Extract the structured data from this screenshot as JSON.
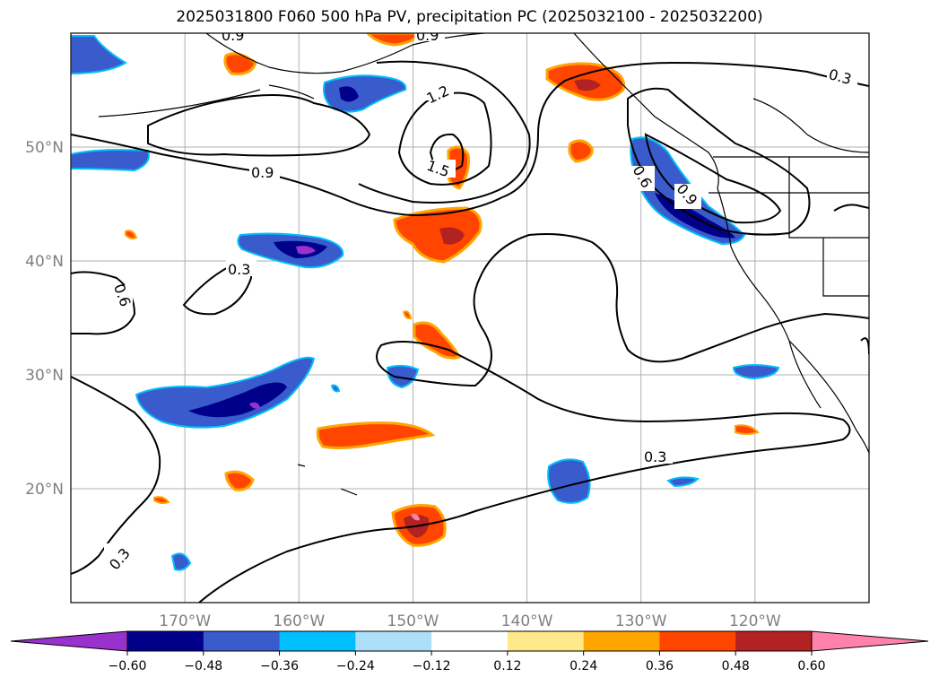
{
  "title": "2025031800 F060 500 hPa PV, precipitation PC (2025032100 - 2025032200)",
  "map": {
    "lon_range": [
      -180,
      -110
    ],
    "lat_range": [
      10,
      60
    ],
    "lat_ticks": [
      {
        "value": 50,
        "label": "50°N"
      },
      {
        "value": 40,
        "label": "40°N"
      },
      {
        "value": 30,
        "label": "30°N"
      },
      {
        "value": 20,
        "label": "20°N"
      }
    ],
    "lon_ticks": [
      {
        "value": -170,
        "label": "170°W"
      },
      {
        "value": -160,
        "label": "160°W"
      },
      {
        "value": -150,
        "label": "150°W"
      },
      {
        "value": -140,
        "label": "140°W"
      },
      {
        "value": -130,
        "label": "130°W"
      },
      {
        "value": -120,
        "label": "120°W"
      }
    ],
    "grid": true,
    "contour_labels": [
      "0.9",
      "0.9",
      "1.2",
      "1.5",
      "0.9",
      "0.3",
      "0.6",
      "0.3",
      "0.6",
      "0.9",
      "0.3",
      "0.3"
    ]
  },
  "colorbar": {
    "ticks": [
      "−0.60",
      "−0.48",
      "−0.36",
      "−0.24",
      "−0.12",
      "0.12",
      "0.24",
      "0.36",
      "0.48",
      "0.60"
    ],
    "colors": [
      "#9932CC",
      "#00008B",
      "#3A5BCC",
      "#00BFFF",
      "#ADDFF9",
      "#FFFFFF",
      "#FFE88A",
      "#FFA500",
      "#FF4500",
      "#B22222",
      "#FF82AB"
    ],
    "extend": "both"
  }
}
